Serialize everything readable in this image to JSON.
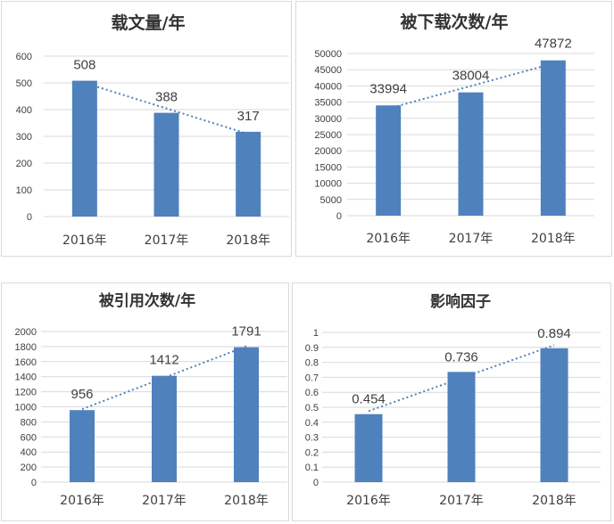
{
  "chart_data": [
    {
      "type": "bar",
      "title": "载文量/年",
      "categories": [
        "2016年",
        "2017年",
        "2018年"
      ],
      "values": [
        508,
        388,
        317
      ],
      "labels": [
        "508",
        "388",
        "317"
      ],
      "yticks": [
        "0",
        "100",
        "200",
        "300",
        "400",
        "500",
        "600"
      ],
      "ylim": [
        0,
        600
      ],
      "grid": true,
      "trendline": "linear",
      "color": "#4f81bd"
    },
    {
      "type": "bar",
      "title": "被下载次数/年",
      "categories": [
        "2016年",
        "2017年",
        "2018年"
      ],
      "values": [
        33994,
        38004,
        47872
      ],
      "labels": [
        "33994",
        "38004",
        "47872"
      ],
      "yticks": [
        "0",
        "5000",
        "10000",
        "15000",
        "20000",
        "25000",
        "30000",
        "35000",
        "40000",
        "45000",
        "50000"
      ],
      "ylim": [
        0,
        50000
      ],
      "grid": true,
      "trendline": "linear",
      "color": "#4f81bd"
    },
    {
      "type": "bar",
      "title": "被引用次数/年",
      "categories": [
        "2016年",
        "2017年",
        "2018年"
      ],
      "values": [
        956,
        1412,
        1791
      ],
      "labels": [
        "956",
        "1412",
        "1791"
      ],
      "yticks": [
        "0",
        "200",
        "400",
        "600",
        "800",
        "1000",
        "1200",
        "1400",
        "1600",
        "1800",
        "2000"
      ],
      "ylim": [
        0,
        2000
      ],
      "grid": true,
      "trendline": "linear",
      "color": "#4f81bd"
    },
    {
      "type": "bar",
      "title": "影响因子",
      "categories": [
        "2016年",
        "2017年",
        "2018年"
      ],
      "values": [
        0.454,
        0.736,
        0.894
      ],
      "labels": [
        "0.454",
        "0.736",
        "0.894"
      ],
      "yticks": [
        "0",
        "0.1",
        "0.2",
        "0.3",
        "0.4",
        "0.5",
        "0.6",
        "0.7",
        "0.8",
        "0.9",
        "1"
      ],
      "ylim": [
        0,
        1
      ],
      "grid": true,
      "trendline": "linear",
      "color": "#4f81bd"
    }
  ]
}
